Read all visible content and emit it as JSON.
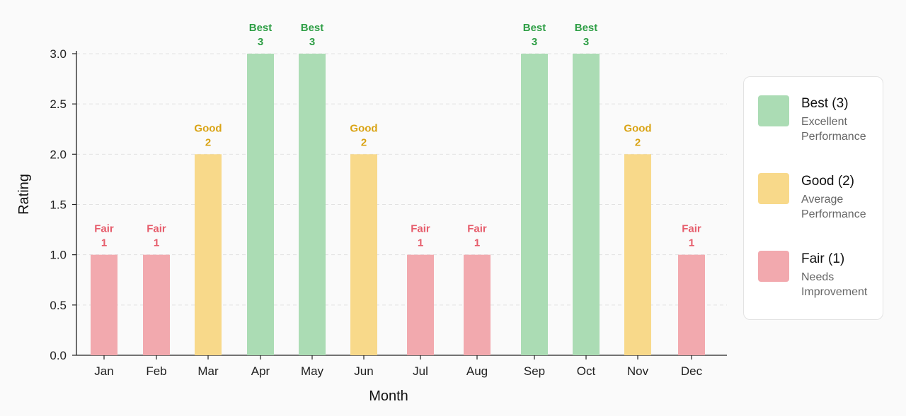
{
  "colors": {
    "best_fill": "#abdcb4",
    "best_text": "#2e9e45",
    "good_fill": "#f8d98a",
    "good_text": "#d9a314",
    "fair_fill": "#f2a9ae",
    "fair_text": "#e65c6b",
    "grid": "#e2e2e2",
    "axis": "#222222"
  },
  "legend": {
    "items": [
      {
        "title": "Best (3)",
        "desc_line1": "Excellent",
        "desc_line2": "Performance",
        "color": "#abdcb4"
      },
      {
        "title": "Good (2)",
        "desc_line1": "Average",
        "desc_line2": "Performance",
        "color": "#f8d98a"
      },
      {
        "title": "Fair (1)",
        "desc_line1": "Needs",
        "desc_line2": "Improvement",
        "color": "#f2a9ae"
      }
    ]
  },
  "chart_data": {
    "type": "bar",
    "title": "",
    "xlabel": "Month",
    "ylabel": "Rating",
    "ylim": [
      0,
      3
    ],
    "yticks": [
      "0.0",
      "0.5",
      "1.0",
      "1.5",
      "2.0",
      "2.5",
      "3.0"
    ],
    "grid": true,
    "legend_position": "right",
    "categories": [
      "Jan",
      "Feb",
      "Mar",
      "Apr",
      "May",
      "Jun",
      "Jul",
      "Aug",
      "Sep",
      "Oct",
      "Nov",
      "Dec"
    ],
    "values": [
      1,
      1,
      2,
      3,
      3,
      2,
      1,
      1,
      3,
      3,
      2,
      1
    ],
    "labels": [
      "Fair",
      "Fair",
      "Good",
      "Best",
      "Best",
      "Good",
      "Fair",
      "Fair",
      "Best",
      "Best",
      "Good",
      "Fair"
    ]
  }
}
